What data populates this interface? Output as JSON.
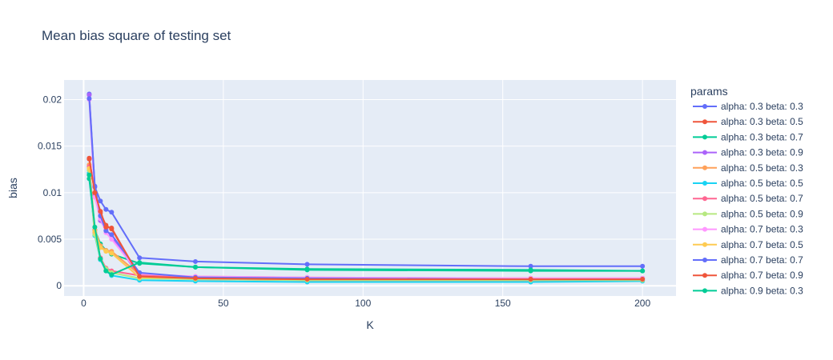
{
  "chart_data": {
    "type": "line",
    "title": "Mean bias square of testing set",
    "xlabel": "K",
    "ylabel": "bias",
    "xlim": [
      -7,
      212
    ],
    "ylim": [
      -0.0011,
      0.0221
    ],
    "xticks": [
      0,
      50,
      100,
      150,
      200
    ],
    "xtick_labels": [
      "0",
      "50",
      "100",
      "150",
      "200"
    ],
    "yticks": [
      0,
      0.005,
      0.01,
      0.015,
      0.02
    ],
    "ytick_labels": [
      "0",
      "0.005",
      "0.01",
      "0.015",
      "0.02"
    ],
    "grid": true,
    "legend_title": "params",
    "legend_position": "right",
    "x": [
      2,
      4,
      6,
      8,
      10,
      20,
      40,
      80,
      160,
      200
    ],
    "series": [
      {
        "name": "alpha: 0.3 beta: 0.3",
        "color": "#636efa",
        "values": [
          0.0206,
          0.0106,
          0.0091,
          0.0082,
          0.0079,
          0.003,
          0.0026,
          0.0023,
          0.0021,
          0.0021
        ]
      },
      {
        "name": "alpha: 0.3 beta: 0.5",
        "color": "#EF553B",
        "values": [
          0.0137,
          0.01,
          0.0078,
          0.0065,
          0.0061,
          0.001,
          0.0007,
          0.0006,
          0.0006,
          0.0006
        ]
      },
      {
        "name": "alpha: 0.3 beta: 0.7",
        "color": "#00cc96",
        "values": [
          0.0115,
          0.006,
          0.0045,
          0.0038,
          0.0034,
          0.0024,
          0.002,
          0.0018,
          0.0017,
          0.0016
        ]
      },
      {
        "name": "alpha: 0.3 beta: 0.9",
        "color": "#ab63fa",
        "values": [
          0.0205,
          0.0098,
          0.007,
          0.006,
          0.0053,
          0.001,
          0.0008,
          0.0008,
          0.0008,
          0.0008
        ]
      },
      {
        "name": "alpha: 0.5 beta: 0.3",
        "color": "#FFA15A",
        "values": [
          0.013,
          0.006,
          0.0043,
          0.0038,
          0.0037,
          0.0012,
          0.001,
          0.0009,
          0.0008,
          0.0008
        ]
      },
      {
        "name": "alpha: 0.5 beta: 0.5",
        "color": "#19d3f3",
        "values": [
          0.0121,
          0.0054,
          0.0028,
          0.0016,
          0.0011,
          0.0006,
          0.0005,
          0.0004,
          0.0004,
          0.0005
        ]
      },
      {
        "name": "alpha: 0.5 beta: 0.7",
        "color": "#FF6692",
        "values": [
          0.0128,
          0.0057,
          0.003,
          0.0019,
          0.0016,
          0.0011,
          0.0009,
          0.0008,
          0.0008,
          0.0008
        ]
      },
      {
        "name": "alpha: 0.5 beta: 0.9",
        "color": "#B6E880",
        "values": [
          0.0124,
          0.0055,
          0.0029,
          0.0018,
          0.0014,
          0.0008,
          0.0007,
          0.0006,
          0.0006,
          0.0006
        ]
      },
      {
        "name": "alpha: 0.7 beta: 0.3",
        "color": "#FF97FF",
        "values": [
          0.02,
          0.0095,
          0.0072,
          0.0057,
          0.005,
          0.0013,
          0.001,
          0.0009,
          0.0008,
          0.0008
        ]
      },
      {
        "name": "alpha: 0.7 beta: 0.5",
        "color": "#FECB52",
        "values": [
          0.0126,
          0.0058,
          0.0041,
          0.0037,
          0.0035,
          0.0009,
          0.0008,
          0.0007,
          0.0007,
          0.0007
        ]
      },
      {
        "name": "alpha: 0.7 beta: 0.7",
        "color": "#636efa",
        "values": [
          0.0201,
          0.0107,
          0.0075,
          0.0059,
          0.0055,
          0.0014,
          0.0009,
          0.0008,
          0.0007,
          0.0007
        ]
      },
      {
        "name": "alpha: 0.7 beta: 0.9",
        "color": "#EF553B",
        "values": [
          0.0136,
          0.01,
          0.008,
          0.0063,
          0.0062,
          0.001,
          0.0008,
          0.0007,
          0.0007,
          0.0007
        ]
      },
      {
        "name": "alpha: 0.9 beta: 0.3",
        "color": "#00cc96",
        "values": [
          0.0119,
          0.0063,
          0.0029,
          0.0016,
          0.0012,
          0.0025,
          0.002,
          0.0017,
          0.0016,
          0.0016
        ]
      }
    ]
  }
}
